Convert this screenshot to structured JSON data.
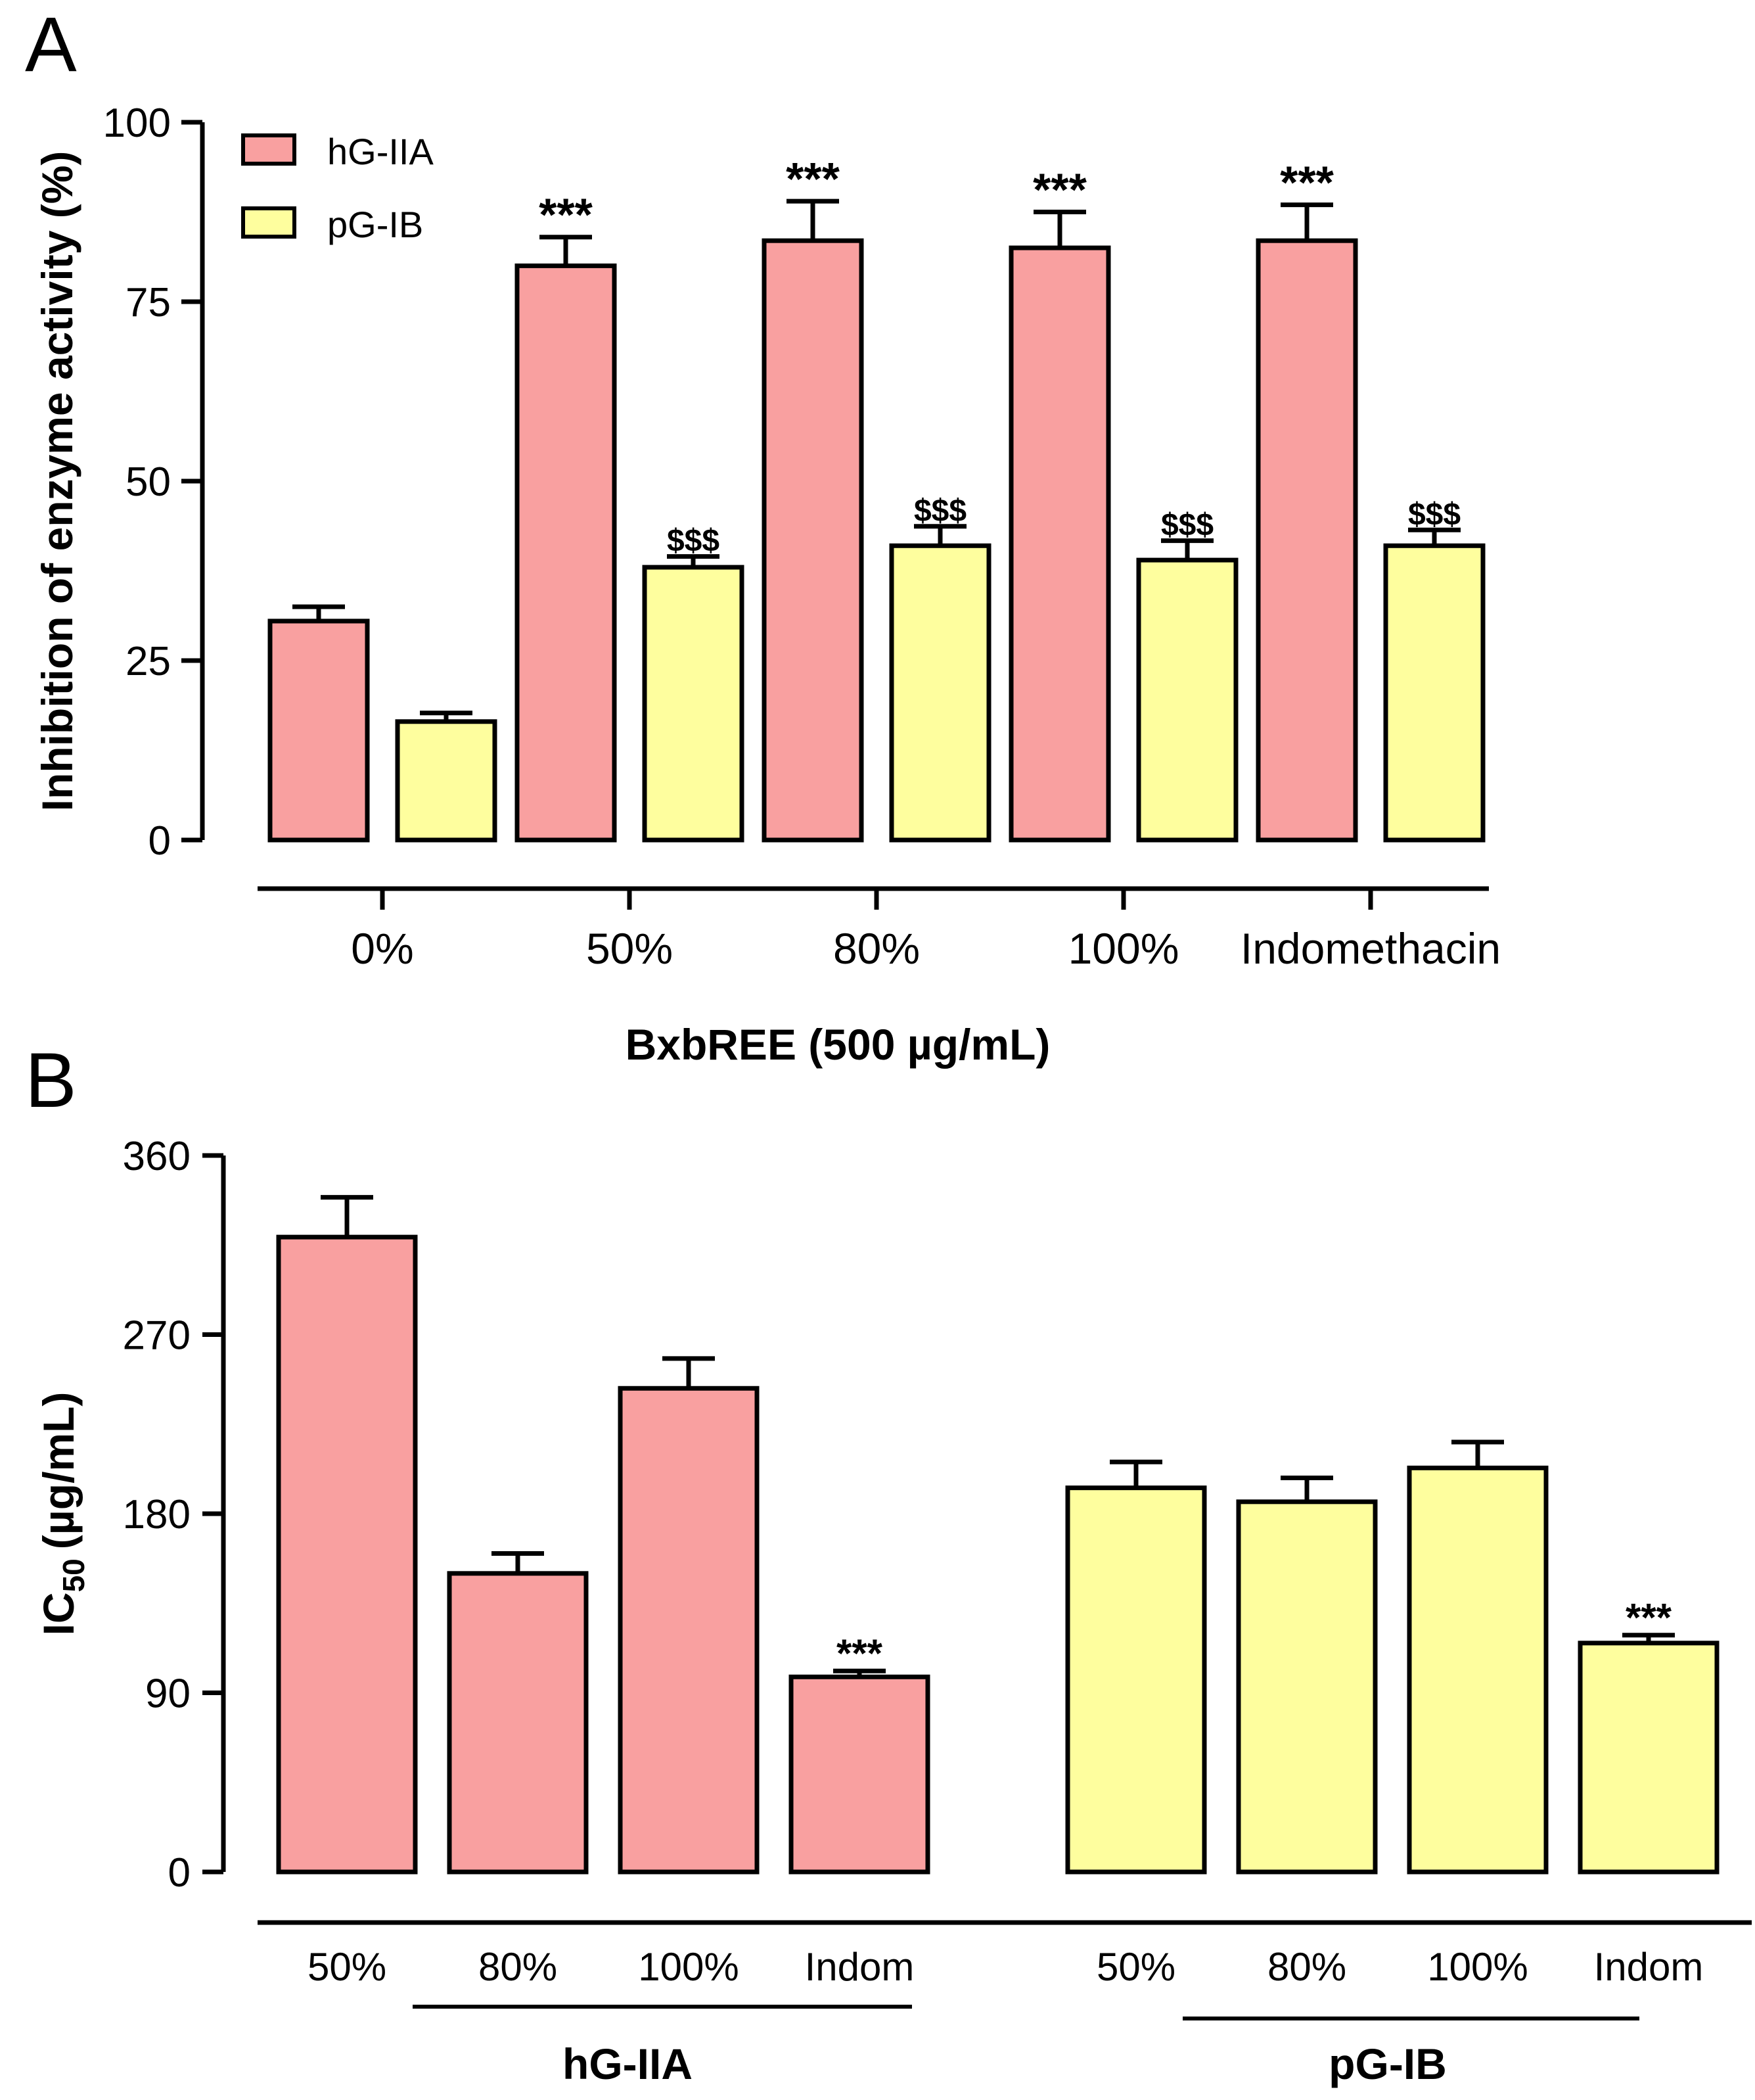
{
  "colors": {
    "hG-IIA": "#f9a0a0",
    "pG-IB": "#fefe9e",
    "stroke": "#000000"
  },
  "chart_data": [
    {
      "panel": "A",
      "type": "bar",
      "ylabel": "Inhibition of enzyme activity (%)",
      "xlabel": "BxbREE (500 µg/mL)",
      "ylim": [
        0,
        100
      ],
      "yticks": [
        "0",
        "25",
        "50",
        "75",
        "100"
      ],
      "categories": [
        "0%",
        "50%",
        "80%",
        "100%",
        "Indomethacin"
      ],
      "legend_position": "top-left",
      "series": [
        {
          "name": "hG-IIA",
          "values": [
            30.5,
            80,
            83.5,
            82.5,
            83.5
          ],
          "errors": [
            2,
            4,
            5.5,
            5,
            5
          ],
          "annotations": [
            "",
            "***",
            "***",
            "***",
            "***"
          ]
        },
        {
          "name": "pG-IB",
          "values": [
            16.5,
            38,
            41,
            39,
            41
          ],
          "errors": [
            1.2,
            1.5,
            2.7,
            2.7,
            2.2
          ],
          "annotations": [
            "",
            "$$$",
            "$$$",
            "$$$",
            "$$$"
          ]
        }
      ]
    },
    {
      "panel": "B",
      "type": "bar",
      "ylabel_main": "IC",
      "ylabel_sub": "50",
      "ylabel_unit": "(µg/mL)",
      "ylim": [
        0,
        360
      ],
      "yticks": [
        "0",
        "90",
        "180",
        "270",
        "360"
      ],
      "groups": [
        {
          "name": "hG-IIA",
          "categories": [
            "50%",
            "80%",
            "100%",
            "Indom"
          ],
          "values": [
            319,
            150,
            243,
            98
          ],
          "errors": [
            20,
            10,
            15,
            3
          ],
          "annotations": [
            "",
            "",
            "",
            "***"
          ]
        },
        {
          "name": "pG-IB",
          "categories": [
            "50%",
            "80%",
            "100%",
            "Indom"
          ],
          "values": [
            193,
            186,
            203,
            115
          ],
          "errors": [
            13,
            12,
            13,
            4
          ],
          "annotations": [
            "",
            "",
            "",
            "***"
          ]
        }
      ]
    }
  ]
}
